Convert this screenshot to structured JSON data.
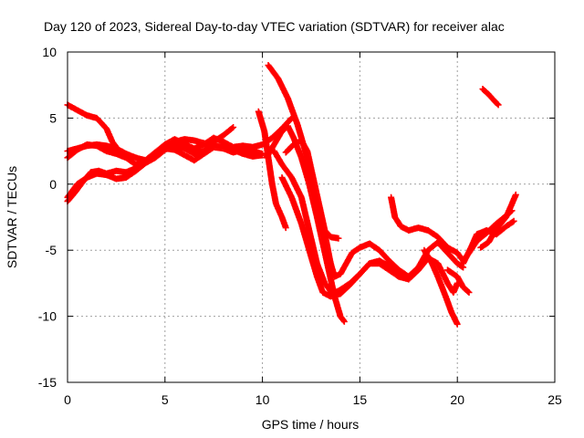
{
  "chart_data": {
    "type": "scatter",
    "title": "Day 120 of 2023, Sidereal Day-to-day VTEC variation (SDTVAR) for receiver alac",
    "xlabel": "GPS time / hours",
    "ylabel": "SDTVAR / TECUs",
    "xlim": [
      0,
      25
    ],
    "ylim": [
      -15,
      10
    ],
    "xticks": [
      0,
      5,
      10,
      15,
      20,
      25
    ],
    "yticks": [
      -15,
      -10,
      -5,
      0,
      5,
      10
    ],
    "xtick_labels": [
      "0",
      "5",
      "10",
      "15",
      "20",
      "25"
    ],
    "ytick_labels": [
      "-15",
      "-10",
      "-5",
      "0",
      "5",
      "10"
    ],
    "grid": true,
    "marker": "+",
    "color": "#ff0000",
    "series": [
      {
        "name": "arc-1",
        "points": [
          [
            0,
            6
          ],
          [
            0.5,
            5.6
          ],
          [
            1,
            5.2
          ],
          [
            1.5,
            5
          ],
          [
            2,
            4.2
          ],
          [
            2.3,
            3.2
          ],
          [
            2.5,
            2.8
          ]
        ]
      },
      {
        "name": "arc-2",
        "points": [
          [
            0,
            2.5
          ],
          [
            0.5,
            2.7
          ],
          [
            1,
            2.9
          ],
          [
            1.5,
            3
          ],
          [
            2,
            2.9
          ],
          [
            2.5,
            2.7
          ],
          [
            3,
            2.3
          ],
          [
            3.5,
            2
          ],
          [
            4,
            1.8
          ],
          [
            4.5,
            2.2
          ],
          [
            5,
            2.8
          ],
          [
            5.5,
            3.2
          ],
          [
            6,
            3.4
          ],
          [
            6.5,
            3.3
          ],
          [
            7,
            3.1
          ],
          [
            7.5,
            2.9
          ],
          [
            8,
            2.8
          ],
          [
            8.5,
            2.6
          ],
          [
            9,
            2.3
          ],
          [
            9.5,
            2.1
          ],
          [
            10,
            2.2
          ]
        ]
      },
      {
        "name": "arc-3",
        "points": [
          [
            0,
            2
          ],
          [
            0.5,
            2.6
          ],
          [
            1,
            3
          ],
          [
            1.5,
            2.9
          ],
          [
            2,
            2.5
          ],
          [
            2.5,
            2.3
          ],
          [
            3,
            2
          ],
          [
            3.5,
            1.5
          ],
          [
            4,
            1.6
          ],
          [
            4.5,
            2
          ],
          [
            5,
            2.6
          ],
          [
            5.5,
            3
          ],
          [
            6,
            2.7
          ],
          [
            6.5,
            2.3
          ],
          [
            7,
            2.5
          ],
          [
            7.5,
            3.2
          ],
          [
            8,
            3.7
          ],
          [
            8.5,
            4.3
          ]
        ]
      },
      {
        "name": "arc-4",
        "points": [
          [
            0,
            -1
          ],
          [
            0.5,
            0
          ],
          [
            1,
            0.5
          ],
          [
            1.5,
            0.8
          ],
          [
            2,
            0.7
          ],
          [
            2.5,
            0.4
          ],
          [
            3,
            0.5
          ],
          [
            3.5,
            1
          ],
          [
            4,
            1.6
          ],
          [
            4.5,
            2.2
          ],
          [
            5,
            2.7
          ],
          [
            5.5,
            2.6
          ],
          [
            6,
            2.2
          ],
          [
            6.5,
            1.8
          ],
          [
            7,
            2.3
          ],
          [
            7.5,
            2.8
          ],
          [
            8,
            2.7
          ],
          [
            8.5,
            2.4
          ],
          [
            9,
            2.6
          ],
          [
            9.5,
            2.5
          ],
          [
            10,
            2.3
          ]
        ]
      },
      {
        "name": "arc-5",
        "points": [
          [
            0,
            -1.3
          ],
          [
            0.4,
            -0.6
          ],
          [
            0.8,
            0.2
          ],
          [
            1.2,
            0.9
          ],
          [
            1.6,
            1
          ],
          [
            2,
            0.8
          ],
          [
            2.5,
            1
          ],
          [
            3,
            0.9
          ],
          [
            3.5,
            1.2
          ],
          [
            4,
            1.8
          ],
          [
            4.5,
            2.4
          ],
          [
            5,
            3
          ],
          [
            5.5,
            3.4
          ],
          [
            6,
            3
          ],
          [
            6.5,
            2.7
          ],
          [
            7,
            3
          ],
          [
            7.5,
            3.5
          ],
          [
            8,
            3.2
          ],
          [
            8.5,
            2.8
          ],
          [
            9,
            2.9
          ],
          [
            9.5,
            2.8
          ],
          [
            10,
            3
          ],
          [
            10.5,
            3.5
          ],
          [
            11,
            4.2
          ],
          [
            11.5,
            5
          ]
        ]
      },
      {
        "name": "arc-6",
        "points": [
          [
            9.8,
            5.5
          ],
          [
            10.1,
            4
          ],
          [
            10.3,
            2
          ],
          [
            10.5,
            0
          ],
          [
            10.7,
            -1.5
          ],
          [
            11,
            -2.5
          ],
          [
            11.2,
            -3.3
          ]
        ]
      },
      {
        "name": "arc-7",
        "points": [
          [
            10.3,
            9
          ],
          [
            10.8,
            8
          ],
          [
            11.3,
            6.5
          ],
          [
            11.8,
            4.5
          ],
          [
            12.3,
            2
          ],
          [
            12.7,
            -0.5
          ],
          [
            13,
            -2.5
          ],
          [
            13.3,
            -4.5
          ],
          [
            13.5,
            -6
          ],
          [
            13.7,
            -7
          ],
          [
            14,
            -6.8
          ],
          [
            14.3,
            -6
          ],
          [
            14.6,
            -5.2
          ],
          [
            15,
            -4.8
          ],
          [
            15.5,
            -4.5
          ],
          [
            16,
            -5
          ],
          [
            16.5,
            -5.8
          ],
          [
            17,
            -6.5
          ],
          [
            17.5,
            -7
          ],
          [
            18,
            -6.3
          ],
          [
            18.5,
            -5
          ],
          [
            19,
            -4.4
          ],
          [
            19.5,
            -5.2
          ],
          [
            20,
            -6
          ],
          [
            20.3,
            -6.3
          ]
        ]
      },
      {
        "name": "arc-8",
        "points": [
          [
            10.2,
            2
          ],
          [
            10.6,
            3
          ],
          [
            11,
            4
          ],
          [
            11.3,
            4.4
          ],
          [
            11.6,
            3.5
          ],
          [
            12,
            2
          ],
          [
            12.4,
            0
          ],
          [
            12.8,
            -2.5
          ],
          [
            13.1,
            -4.5
          ],
          [
            13.4,
            -6.5
          ],
          [
            13.7,
            -8.5
          ],
          [
            14,
            -10
          ],
          [
            14.2,
            -10.4
          ]
        ]
      },
      {
        "name": "arc-9",
        "points": [
          [
            10.6,
            2.5
          ],
          [
            11,
            1.5
          ],
          [
            11.5,
            0.5
          ],
          [
            12,
            -1
          ],
          [
            12.4,
            -3.5
          ],
          [
            12.8,
            -6
          ],
          [
            13.2,
            -7.5
          ],
          [
            13.6,
            -8.3
          ],
          [
            14,
            -8
          ],
          [
            14.5,
            -7.5
          ],
          [
            15,
            -6.8
          ],
          [
            15.5,
            -6
          ],
          [
            16,
            -6
          ],
          [
            16.5,
            -6.5
          ],
          [
            17,
            -7
          ],
          [
            17.5,
            -7.2
          ],
          [
            18,
            -6.5
          ],
          [
            18.5,
            -5.6
          ],
          [
            19,
            -6
          ],
          [
            19.5,
            -7.5
          ],
          [
            19.8,
            -8.2
          ],
          [
            20,
            -7.5
          ]
        ]
      },
      {
        "name": "arc-10",
        "points": [
          [
            11.2,
            2.4
          ],
          [
            11.6,
            3
          ],
          [
            12,
            3.3
          ],
          [
            12.3,
            2.5
          ],
          [
            12.6,
            0.5
          ],
          [
            12.9,
            -1.5
          ],
          [
            13.2,
            -3.5
          ],
          [
            13.5,
            -4
          ],
          [
            13.9,
            -4.1
          ]
        ]
      },
      {
        "name": "arc-11",
        "points": [
          [
            11,
            0.5
          ],
          [
            11.5,
            -1
          ],
          [
            12,
            -3
          ],
          [
            12.4,
            -5
          ],
          [
            12.8,
            -7
          ],
          [
            13.1,
            -8.2
          ],
          [
            13.5,
            -8.5
          ],
          [
            14,
            -8.3
          ],
          [
            14.5,
            -7.6
          ],
          [
            15,
            -6.8
          ],
          [
            15.5,
            -6
          ],
          [
            16,
            -5.8
          ],
          [
            16.5,
            -6.2
          ],
          [
            17,
            -6.8
          ],
          [
            17.3,
            -6.9
          ]
        ]
      },
      {
        "name": "arc-12",
        "points": [
          [
            16.6,
            -1
          ],
          [
            16.8,
            -2.5
          ],
          [
            17.1,
            -3.2
          ],
          [
            17.5,
            -3.5
          ],
          [
            18,
            -3.3
          ],
          [
            18.5,
            -3.5
          ],
          [
            19,
            -4
          ],
          [
            19.5,
            -4.8
          ],
          [
            20,
            -5.2
          ],
          [
            20.3,
            -5.8
          ],
          [
            20.6,
            -5.2
          ],
          [
            21,
            -4.3
          ],
          [
            21.5,
            -3.7
          ],
          [
            22,
            -3
          ],
          [
            22.5,
            -2.4
          ],
          [
            22.8,
            -2
          ]
        ]
      },
      {
        "name": "arc-13",
        "points": [
          [
            18.3,
            -5
          ],
          [
            18.7,
            -6
          ],
          [
            19,
            -7
          ],
          [
            19.4,
            -8.5
          ],
          [
            19.7,
            -9.7
          ],
          [
            20,
            -10.6
          ]
        ]
      },
      {
        "name": "arc-14",
        "points": [
          [
            19.5,
            -6.5
          ],
          [
            20,
            -7
          ],
          [
            20.3,
            -7.8
          ],
          [
            20.6,
            -8.2
          ]
        ]
      },
      {
        "name": "arc-15",
        "points": [
          [
            20.3,
            -6
          ],
          [
            20.7,
            -4.8
          ],
          [
            21,
            -3.8
          ],
          [
            21.5,
            -3.5
          ],
          [
            22,
            -3.8
          ],
          [
            22.5,
            -3.2
          ],
          [
            22.9,
            -2.8
          ]
        ]
      },
      {
        "name": "arc-16",
        "points": [
          [
            21.2,
            -4.8
          ],
          [
            21.6,
            -4.4
          ],
          [
            22,
            -3.4
          ],
          [
            22.5,
            -2.5
          ],
          [
            22.8,
            -1.5
          ],
          [
            23,
            -0.8
          ]
        ]
      },
      {
        "name": "arc-17",
        "points": [
          [
            21.3,
            7.2
          ],
          [
            21.6,
            6.8
          ],
          [
            21.9,
            6.3
          ],
          [
            22.1,
            6
          ]
        ]
      }
    ]
  }
}
